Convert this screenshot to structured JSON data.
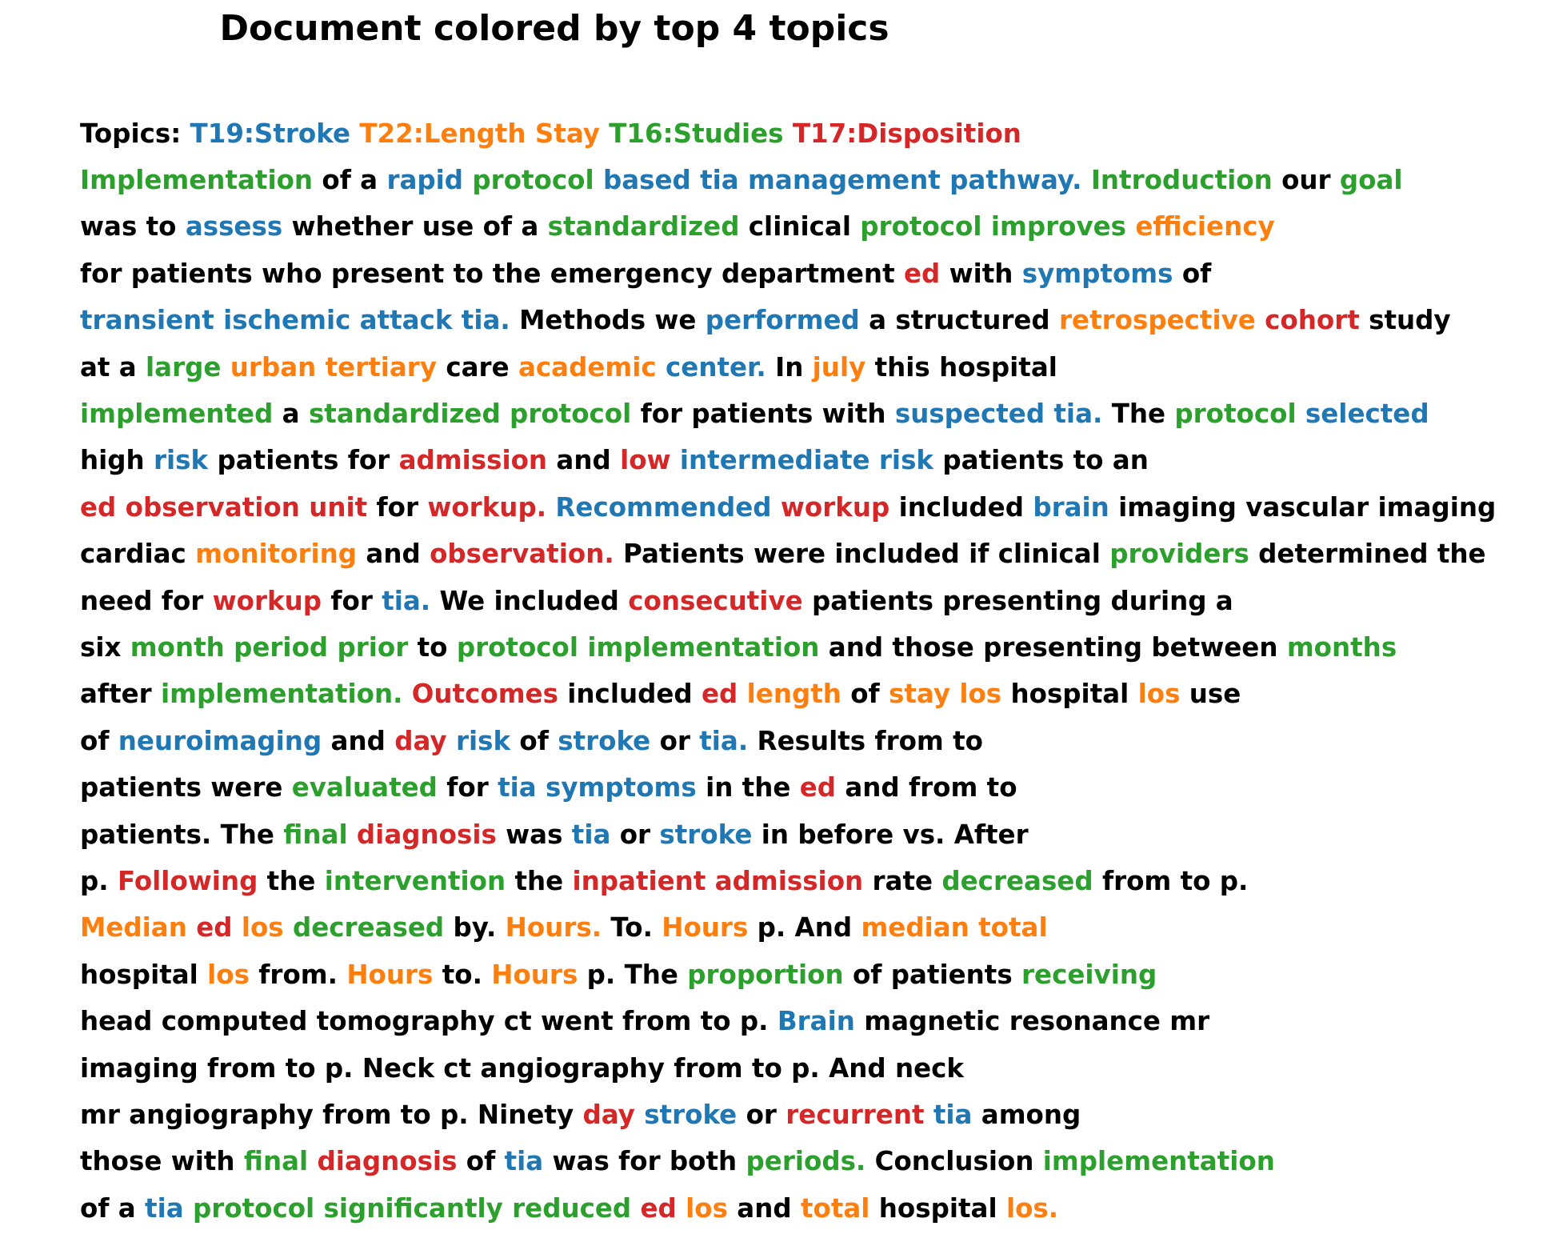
{
  "title": "Document colored by top 4 topics",
  "colors": {
    "T19": "#1f77b4",
    "T22": "#ff7f0e",
    "T16": "#2ca02c",
    "T17": "#d62728",
    "none": "#000000"
  },
  "topics_legend": {
    "prefix": "Topics:",
    "items": [
      {
        "id": "T19",
        "label": "T19:Stroke"
      },
      {
        "id": "T22",
        "label": "T22:Length Stay"
      },
      {
        "id": "T16",
        "label": "T16:Studies"
      },
      {
        "id": "T17",
        "label": "T17:Disposition"
      }
    ]
  },
  "lines": [
    [
      [
        "T16",
        "Implementation"
      ],
      [
        "none",
        "of a"
      ],
      [
        "T19",
        "rapid"
      ],
      [
        "T16",
        "protocol"
      ],
      [
        "T19",
        "based tia management pathway."
      ],
      [
        "T16",
        "Introduction"
      ],
      [
        "none",
        "our"
      ],
      [
        "T16",
        "goal"
      ]
    ],
    [
      [
        "none",
        "was to"
      ],
      [
        "T19",
        "assess"
      ],
      [
        "none",
        "whether use of a"
      ],
      [
        "T16",
        "standardized"
      ],
      [
        "none",
        "clinical"
      ],
      [
        "T16",
        "protocol improves"
      ],
      [
        "T22",
        "efficiency"
      ]
    ],
    [
      [
        "none",
        "for patients who present to the emergency department"
      ],
      [
        "T17",
        "ed"
      ],
      [
        "none",
        "with"
      ],
      [
        "T19",
        "symptoms"
      ],
      [
        "none",
        "of"
      ]
    ],
    [
      [
        "T19",
        "transient ischemic attack tia."
      ],
      [
        "none",
        "Methods we"
      ],
      [
        "T19",
        "performed"
      ],
      [
        "none",
        "a structured"
      ],
      [
        "T22",
        "retrospective"
      ],
      [
        "T17",
        "cohort"
      ],
      [
        "none",
        "study"
      ]
    ],
    [
      [
        "none",
        "at a"
      ],
      [
        "T16",
        "large"
      ],
      [
        "T22",
        "urban tertiary"
      ],
      [
        "none",
        "care"
      ],
      [
        "T22",
        "academic"
      ],
      [
        "T19",
        "center."
      ],
      [
        "none",
        "In"
      ],
      [
        "T22",
        "july"
      ],
      [
        "none",
        "this hospital"
      ]
    ],
    [
      [
        "T16",
        "implemented"
      ],
      [
        "none",
        "a"
      ],
      [
        "T16",
        "standardized protocol"
      ],
      [
        "none",
        "for patients with"
      ],
      [
        "T19",
        "suspected tia."
      ],
      [
        "none",
        "The"
      ],
      [
        "T16",
        "protocol"
      ],
      [
        "T19",
        "selected"
      ]
    ],
    [
      [
        "none",
        "high"
      ],
      [
        "T19",
        "risk"
      ],
      [
        "none",
        "patients for"
      ],
      [
        "T17",
        "admission"
      ],
      [
        "none",
        "and"
      ],
      [
        "T17",
        "low"
      ],
      [
        "T19",
        "intermediate risk"
      ],
      [
        "none",
        "patients to an"
      ]
    ],
    [
      [
        "T17",
        "ed observation unit"
      ],
      [
        "none",
        "for"
      ],
      [
        "T17",
        "workup."
      ],
      [
        "T19",
        "Recommended"
      ],
      [
        "T17",
        "workup"
      ],
      [
        "none",
        "included"
      ],
      [
        "T19",
        "brain"
      ],
      [
        "none",
        "imaging vascular imaging"
      ]
    ],
    [
      [
        "none",
        "cardiac"
      ],
      [
        "T22",
        "monitoring"
      ],
      [
        "none",
        "and"
      ],
      [
        "T17",
        "observation."
      ],
      [
        "none",
        "Patients were included if clinical"
      ],
      [
        "T16",
        "providers"
      ],
      [
        "none",
        "determined the"
      ]
    ],
    [
      [
        "none",
        "need for"
      ],
      [
        "T17",
        "workup"
      ],
      [
        "none",
        "for"
      ],
      [
        "T19",
        "tia."
      ],
      [
        "none",
        "We included"
      ],
      [
        "T17",
        "consecutive"
      ],
      [
        "none",
        "patients presenting during a"
      ]
    ],
    [
      [
        "none",
        "six"
      ],
      [
        "T16",
        "month period prior"
      ],
      [
        "none",
        "to"
      ],
      [
        "T16",
        "protocol implementation"
      ],
      [
        "none",
        "and those presenting between"
      ],
      [
        "T16",
        "months"
      ]
    ],
    [
      [
        "none",
        "after"
      ],
      [
        "T16",
        "implementation."
      ],
      [
        "T17",
        "Outcomes"
      ],
      [
        "none",
        "included"
      ],
      [
        "T17",
        "ed"
      ],
      [
        "T22",
        "length"
      ],
      [
        "none",
        "of"
      ],
      [
        "T22",
        "stay los"
      ],
      [
        "none",
        "hospital"
      ],
      [
        "T22",
        "los"
      ],
      [
        "none",
        "use"
      ]
    ],
    [
      [
        "none",
        "of"
      ],
      [
        "T19",
        "neuroimaging"
      ],
      [
        "none",
        "and"
      ],
      [
        "T17",
        "day"
      ],
      [
        "T19",
        "risk"
      ],
      [
        "none",
        "of"
      ],
      [
        "T19",
        "stroke"
      ],
      [
        "none",
        "or"
      ],
      [
        "T19",
        "tia."
      ],
      [
        "none",
        "Results from to"
      ]
    ],
    [
      [
        "none",
        "patients were"
      ],
      [
        "T16",
        "evaluated"
      ],
      [
        "none",
        "for"
      ],
      [
        "T19",
        "tia symptoms"
      ],
      [
        "none",
        "in the"
      ],
      [
        "T17",
        "ed"
      ],
      [
        "none",
        "and from to"
      ]
    ],
    [
      [
        "none",
        "patients. The"
      ],
      [
        "T16",
        "final"
      ],
      [
        "T17",
        "diagnosis"
      ],
      [
        "none",
        "was"
      ],
      [
        "T19",
        "tia"
      ],
      [
        "none",
        "or"
      ],
      [
        "T19",
        "stroke"
      ],
      [
        "none",
        "in before vs. After"
      ]
    ],
    [
      [
        "none",
        "p."
      ],
      [
        "T17",
        "Following"
      ],
      [
        "none",
        "the"
      ],
      [
        "T16",
        "intervention"
      ],
      [
        "none",
        "the"
      ],
      [
        "T17",
        "inpatient admission"
      ],
      [
        "none",
        "rate"
      ],
      [
        "T16",
        "decreased"
      ],
      [
        "none",
        "from to p."
      ]
    ],
    [
      [
        "T22",
        "Median"
      ],
      [
        "T17",
        "ed"
      ],
      [
        "T22",
        "los"
      ],
      [
        "T16",
        "decreased"
      ],
      [
        "none",
        "by."
      ],
      [
        "T22",
        "Hours."
      ],
      [
        "none",
        "To."
      ],
      [
        "T22",
        "Hours"
      ],
      [
        "none",
        "p. And"
      ],
      [
        "T22",
        "median total"
      ]
    ],
    [
      [
        "none",
        "hospital"
      ],
      [
        "T22",
        "los"
      ],
      [
        "none",
        "from."
      ],
      [
        "T22",
        "Hours"
      ],
      [
        "none",
        "to."
      ],
      [
        "T22",
        "Hours"
      ],
      [
        "none",
        "p. The"
      ],
      [
        "T16",
        "proportion"
      ],
      [
        "none",
        "of patients"
      ],
      [
        "T16",
        "receiving"
      ]
    ],
    [
      [
        "none",
        "head computed tomography ct went from to p."
      ],
      [
        "T19",
        "Brain"
      ],
      [
        "none",
        "magnetic resonance mr"
      ]
    ],
    [
      [
        "none",
        "imaging from to p. Neck ct angiography from to p. And neck"
      ]
    ],
    [
      [
        "none",
        "mr angiography from to p. Ninety"
      ],
      [
        "T17",
        "day"
      ],
      [
        "T19",
        "stroke"
      ],
      [
        "none",
        "or"
      ],
      [
        "T17",
        "recurrent"
      ],
      [
        "T19",
        "tia"
      ],
      [
        "none",
        "among"
      ]
    ],
    [
      [
        "none",
        "those with"
      ],
      [
        "T16",
        "final"
      ],
      [
        "T17",
        "diagnosis"
      ],
      [
        "none",
        "of"
      ],
      [
        "T19",
        "tia"
      ],
      [
        "none",
        "was for both"
      ],
      [
        "T16",
        "periods."
      ],
      [
        "none",
        "Conclusion"
      ],
      [
        "T16",
        "implementation"
      ]
    ],
    [
      [
        "none",
        "of a"
      ],
      [
        "T19",
        "tia"
      ],
      [
        "T16",
        "protocol significantly reduced"
      ],
      [
        "T17",
        "ed"
      ],
      [
        "T22",
        "los"
      ],
      [
        "none",
        "and"
      ],
      [
        "T22",
        "total"
      ],
      [
        "none",
        "hospital"
      ],
      [
        "T22",
        "los."
      ]
    ]
  ]
}
